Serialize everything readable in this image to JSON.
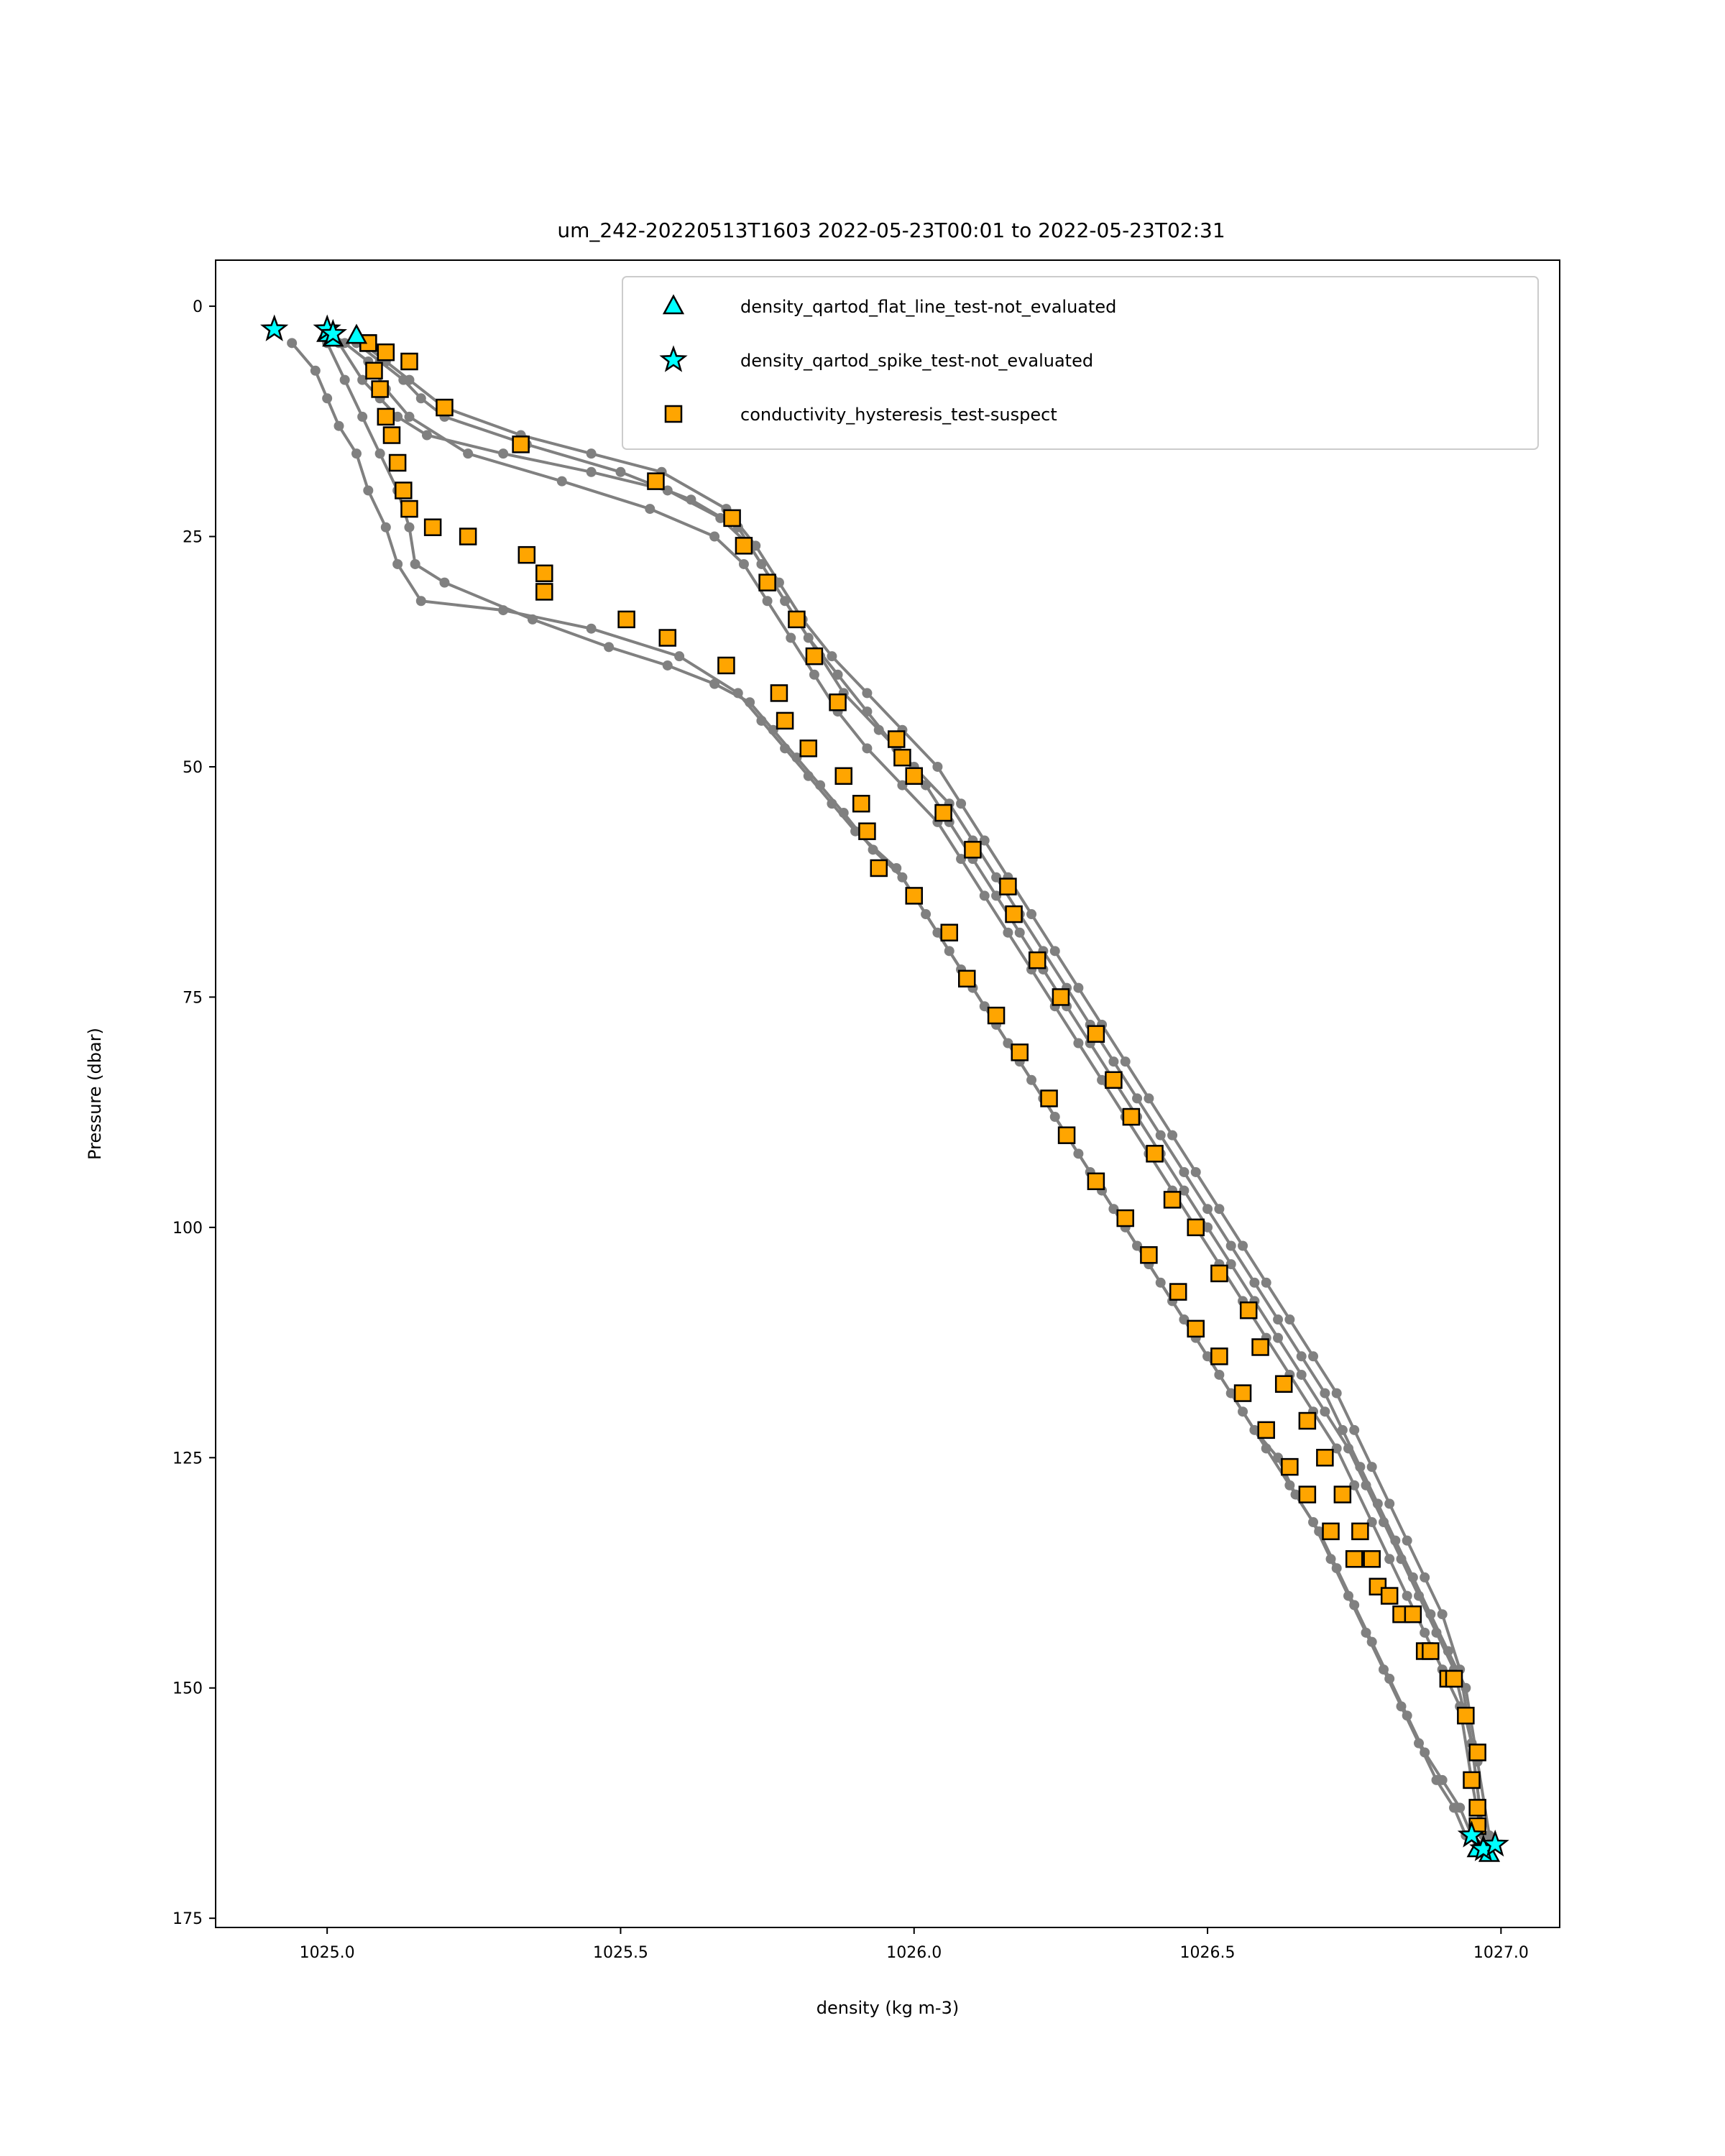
{
  "chart_data": {
    "type": "scatter",
    "title": "um_242-20220513T1603 2022-05-23T00:01 to 2022-05-23T02:31",
    "xlabel": "density (kg m-3)",
    "ylabel": "Pressure (dbar)",
    "xlim": [
      1024.81,
      1027.1
    ],
    "ylim": [
      176,
      -5
    ],
    "y_inverted": true,
    "xticks": [
      1025.0,
      1025.5,
      1026.0,
      1026.5,
      1027.0
    ],
    "xtick_labels": [
      "1025.0",
      "1025.5",
      "1026.0",
      "1026.5",
      "1027.0"
    ],
    "yticks": [
      0,
      25,
      50,
      75,
      100,
      125,
      150,
      175
    ],
    "ytick_labels": [
      "0",
      "25",
      "50",
      "75",
      "100",
      "125",
      "150",
      "175"
    ],
    "grid": false,
    "legend_position": "top-right",
    "profiles": [
      {
        "x": [
          1024.94,
          1024.98,
          1025.0,
          1025.02,
          1025.05,
          1025.07,
          1025.1,
          1025.12,
          1025.16,
          1025.3,
          1025.45,
          1025.6,
          1025.7,
          1025.74,
          1025.78,
          1025.82,
          1025.86,
          1025.9,
          1025.97,
          1026.0,
          1026.04,
          1026.08,
          1026.12,
          1026.16,
          1026.2,
          1026.24,
          1026.28,
          1026.32,
          1026.36,
          1026.4,
          1026.44,
          1026.48,
          1026.52,
          1026.56,
          1026.6,
          1026.64,
          1026.68,
          1026.71,
          1026.74,
          1026.77,
          1026.8,
          1026.83,
          1026.86,
          1026.89,
          1026.92,
          1026.94,
          1026.96,
          1026.98
        ],
        "y": [
          4,
          7,
          10,
          13,
          16,
          20,
          24,
          28,
          32,
          33,
          35,
          38,
          42,
          45,
          48,
          51,
          54,
          57,
          61,
          64,
          68,
          72,
          76,
          80,
          84,
          88,
          92,
          96,
          100,
          104,
          108,
          112,
          116,
          120,
          124,
          128,
          132,
          136,
          140,
          144,
          148,
          152,
          156,
          160,
          163,
          166,
          167,
          168
        ]
      },
      {
        "x": [
          1025.0,
          1025.03,
          1025.06,
          1025.09,
          1025.12,
          1025.14,
          1025.15,
          1025.2,
          1025.35,
          1025.48,
          1025.58,
          1025.66,
          1025.72,
          1025.76,
          1025.8,
          1025.84,
          1025.88,
          1025.93,
          1025.98,
          1026.02,
          1026.06,
          1026.1,
          1026.14,
          1026.18,
          1026.22,
          1026.26,
          1026.3,
          1026.34,
          1026.38,
          1026.42,
          1026.46,
          1026.5,
          1026.54,
          1026.58,
          1026.62,
          1026.65,
          1026.69,
          1026.72,
          1026.75,
          1026.78,
          1026.81,
          1026.84,
          1026.87,
          1026.9,
          1026.93,
          1026.95,
          1026.97
        ],
        "y": [
          4,
          8,
          12,
          16,
          20,
          24,
          28,
          30,
          34,
          37,
          39,
          41,
          43,
          46,
          49,
          52,
          55,
          59,
          62,
          66,
          70,
          74,
          78,
          82,
          86,
          90,
          94,
          98,
          102,
          106,
          110,
          114,
          118,
          122,
          125,
          129,
          133,
          137,
          141,
          145,
          149,
          153,
          157,
          160,
          163,
          166,
          168
        ]
      },
      {
        "x": [
          1025.02,
          1025.06,
          1025.09,
          1025.12,
          1025.17,
          1025.3,
          1025.45,
          1025.58,
          1025.67,
          1025.72,
          1025.76,
          1025.8,
          1025.84,
          1025.88,
          1025.94,
          1026.0,
          1026.06,
          1026.1,
          1026.14,
          1026.18,
          1026.22,
          1026.26,
          1026.3,
          1026.34,
          1026.38,
          1026.42,
          1026.46,
          1026.5,
          1026.54,
          1026.58,
          1026.62,
          1026.66,
          1026.7,
          1026.73,
          1026.76,
          1026.79,
          1026.82,
          1026.85,
          1026.88,
          1026.91,
          1026.94,
          1026.96,
          1026.98
        ],
        "y": [
          4,
          8,
          10,
          12,
          14,
          16,
          18,
          20,
          23,
          26,
          30,
          34,
          38,
          42,
          46,
          50,
          54,
          58,
          62,
          66,
          70,
          74,
          78,
          82,
          86,
          90,
          94,
          98,
          102,
          106,
          110,
          114,
          118,
          122,
          126,
          130,
          134,
          138,
          142,
          146,
          150,
          158,
          166
        ]
      },
      {
        "x": [
          1025.03,
          1025.07,
          1025.1,
          1025.14,
          1025.24,
          1025.4,
          1025.55,
          1025.66,
          1025.71,
          1025.75,
          1025.79,
          1025.83,
          1025.87,
          1025.92,
          1025.98,
          1026.04,
          1026.08,
          1026.12,
          1026.16,
          1026.2,
          1026.24,
          1026.28,
          1026.32,
          1026.36,
          1026.4,
          1026.44,
          1026.48,
          1026.52,
          1026.56,
          1026.6,
          1026.64,
          1026.68,
          1026.72,
          1026.75,
          1026.78,
          1026.81,
          1026.84,
          1026.87,
          1026.9,
          1026.93,
          1026.95,
          1026.97
        ],
        "y": [
          4,
          6,
          9,
          12,
          16,
          19,
          22,
          25,
          28,
          32,
          36,
          40,
          44,
          48,
          52,
          56,
          60,
          64,
          68,
          72,
          76,
          80,
          84,
          88,
          92,
          96,
          100,
          104,
          108,
          112,
          116,
          120,
          124,
          128,
          132,
          136,
          140,
          144,
          148,
          152,
          160,
          167
        ]
      },
      {
        "x": [
          1025.05,
          1025.09,
          1025.13,
          1025.16,
          1025.2,
          1025.34,
          1025.5,
          1025.62,
          1025.7,
          1025.74,
          1025.78,
          1025.82,
          1025.87,
          1025.92,
          1025.97,
          1026.02,
          1026.06,
          1026.1,
          1026.14,
          1026.18,
          1026.22,
          1026.26,
          1026.3,
          1026.34,
          1026.38,
          1026.42,
          1026.46,
          1026.5,
          1026.54,
          1026.58,
          1026.62,
          1026.66,
          1026.7,
          1026.74,
          1026.77,
          1026.8,
          1026.83,
          1026.86,
          1026.89,
          1026.92,
          1026.95,
          1026.97
        ],
        "y": [
          4,
          6,
          8,
          10,
          12,
          15,
          18,
          21,
          24,
          28,
          32,
          36,
          40,
          44,
          48,
          52,
          56,
          60,
          64,
          68,
          72,
          76,
          80,
          84,
          88,
          92,
          96,
          100,
          104,
          108,
          112,
          116,
          120,
          124,
          128,
          132,
          136,
          140,
          144,
          148,
          156,
          166
        ]
      },
      {
        "x": [
          1025.06,
          1025.1,
          1025.14,
          1025.2,
          1025.33,
          1025.45,
          1025.57,
          1025.68,
          1025.73,
          1025.77,
          1025.81,
          1025.86,
          1025.92,
          1025.98,
          1026.04,
          1026.08,
          1026.12,
          1026.16,
          1026.2,
          1026.24,
          1026.28,
          1026.32,
          1026.36,
          1026.4,
          1026.44,
          1026.48,
          1026.52,
          1026.56,
          1026.6,
          1026.64,
          1026.68,
          1026.72,
          1026.75,
          1026.78,
          1026.81,
          1026.84,
          1026.87,
          1026.9,
          1026.93,
          1026.95,
          1026.97
        ],
        "y": [
          4,
          6,
          8,
          11,
          14,
          16,
          18,
          22,
          26,
          30,
          34,
          38,
          42,
          46,
          50,
          54,
          58,
          62,
          66,
          70,
          74,
          78,
          82,
          86,
          90,
          94,
          98,
          102,
          106,
          110,
          114,
          118,
          122,
          126,
          130,
          134,
          138,
          142,
          148,
          156,
          166
        ]
      }
    ],
    "series": [
      {
        "name": "density_qartod_flat_line_test-not_evaluated",
        "marker": "triangle",
        "color": "#00ffff",
        "x": [
          1025.0,
          1025.01,
          1025.05,
          1026.96,
          1026.98
        ],
        "y": [
          3,
          3.5,
          3.2,
          167.5,
          168
        ]
      },
      {
        "name": "density_qartod_spike_test-not_evaluated",
        "marker": "star",
        "color": "#00ffff",
        "x": [
          1024.91,
          1025.0,
          1025.01,
          1026.95,
          1026.97,
          1026.99
        ],
        "y": [
          2.5,
          2.5,
          3.0,
          166,
          167.5,
          167
        ]
      },
      {
        "name": "conductivity_hysteresis_test-suspect",
        "marker": "square",
        "color": "#ffa500",
        "x": [
          1025.07,
          1025.08,
          1025.09,
          1025.1,
          1025.11,
          1025.12,
          1025.13,
          1025.14,
          1025.18,
          1025.24,
          1025.34,
          1025.37,
          1025.37,
          1025.51,
          1025.58,
          1025.68,
          1025.77,
          1025.78,
          1025.82,
          1025.88,
          1025.91,
          1025.92,
          1025.94,
          1026.0,
          1026.06,
          1026.09,
          1026.14,
          1026.18,
          1026.23,
          1026.26,
          1026.31,
          1026.36,
          1026.4,
          1026.45,
          1026.48,
          1026.52,
          1026.56,
          1026.6,
          1026.64,
          1026.67,
          1026.71,
          1026.75,
          1026.79,
          1026.83,
          1026.87,
          1026.91,
          1026.94,
          1026.96,
          1026.96,
          1025.07,
          1025.1,
          1025.14,
          1025.2,
          1025.33,
          1025.56,
          1025.69,
          1025.71,
          1025.75,
          1025.8,
          1025.83,
          1025.87,
          1025.97,
          1025.98,
          1026.0,
          1026.05,
          1026.1,
          1026.16,
          1026.17,
          1026.21,
          1026.25,
          1026.31,
          1026.34,
          1026.37,
          1026.41,
          1026.44,
          1026.48,
          1026.52,
          1026.57,
          1026.59,
          1026.63,
          1026.67,
          1026.7,
          1026.73,
          1026.76,
          1026.78,
          1026.81,
          1026.85,
          1026.88,
          1026.92,
          1026.95,
          1026.96
        ],
        "y": [
          4,
          7,
          9,
          12,
          14,
          17,
          20,
          22,
          24,
          25,
          27,
          29,
          31,
          34,
          36,
          39,
          42,
          45,
          48,
          51,
          54,
          57,
          61,
          64,
          68,
          73,
          77,
          81,
          86,
          90,
          95,
          99,
          103,
          107,
          111,
          114,
          118,
          122,
          126,
          129,
          133,
          136,
          139,
          142,
          146,
          149,
          153,
          157,
          163,
          4,
          5,
          6,
          11,
          15,
          19,
          23,
          26,
          30,
          34,
          38,
          43,
          47,
          49,
          51,
          55,
          59,
          63,
          66,
          71,
          75,
          79,
          84,
          88,
          92,
          97,
          100,
          105,
          109,
          113,
          117,
          121,
          125,
          129,
          133,
          136,
          140,
          142,
          146,
          149,
          160,
          165
        ]
      }
    ]
  }
}
